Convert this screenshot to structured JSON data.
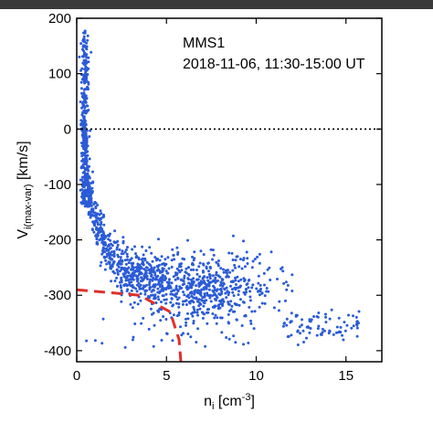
{
  "chart_data": {
    "type": "scatter",
    "annotation": {
      "line1": "MMS1",
      "line2": "2018-11-06, 11:30-15:00 UT"
    },
    "xlabel": {
      "base": "n",
      "sub": "i",
      "unit_open": " [cm",
      "unit_sup": "-3",
      "unit_close": "]"
    },
    "ylabel": {
      "base": "V",
      "sub": "i(max-var)",
      "unit": " [km/s]"
    },
    "xlim": [
      0,
      17
    ],
    "ylim": [
      -420,
      200
    ],
    "xticks": [
      0,
      5,
      10,
      15
    ],
    "yticks": [
      200,
      100,
      0,
      -100,
      -200,
      -300,
      -400
    ],
    "grid": false,
    "point_color": "#2b5bd6",
    "reference_lines": [
      {
        "style": "dotted",
        "color": "#000000",
        "y": 0
      },
      {
        "style": "dashed",
        "color": "#e0302a",
        "points": [
          [
            0,
            -290
          ],
          [
            3.5,
            -300
          ],
          [
            5.2,
            -330
          ],
          [
            5.7,
            -380
          ],
          [
            5.8,
            -420
          ]
        ]
      }
    ],
    "clusters": [
      {
        "note": "near-axis vertical band",
        "n": 380,
        "x_mean": 0.45,
        "x_sd": 0.1,
        "y_min": -140,
        "y_max": 180
      },
      {
        "note": "decaying arm",
        "n": 550,
        "x_min": 0.6,
        "x_max": 5.0,
        "trend": "decay",
        "y_sd": 22
      },
      {
        "note": "main cloud",
        "n": 600,
        "x_mean": 7.0,
        "x_sd": 2.0,
        "y_mean": -280,
        "y_sd": 30
      },
      {
        "note": "tail",
        "n": 80,
        "x_min": 11.5,
        "x_max": 15.8,
        "y_mean": -355,
        "y_sd": 13
      },
      {
        "note": "scattered low points",
        "n": 40,
        "x_min": 0.5,
        "x_max": 10,
        "y_min": -400,
        "y_max": -330
      }
    ]
  }
}
